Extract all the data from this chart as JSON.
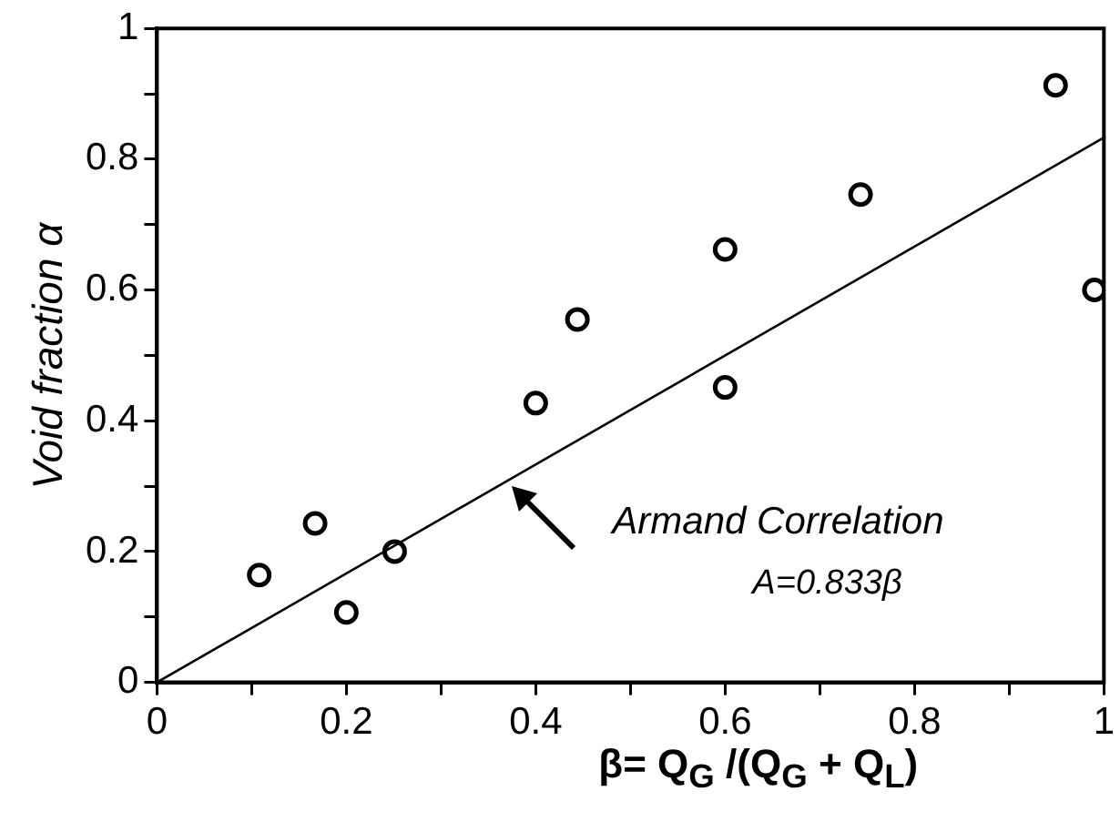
{
  "chart_data": {
    "type": "scatter",
    "xlabel": "β= Q$_{G}$ /(Q$_{G}$ + Q$_{L}$)",
    "ylabel": "Void fraction α",
    "xlim": [
      0,
      1
    ],
    "ylim": [
      0,
      1
    ],
    "xticks": [
      0,
      {
        "value": 0.1,
        "label": null
      },
      0.2,
      {
        "value": 0.3,
        "label": null
      },
      0.4,
      {
        "value": 0.5,
        "label": null
      },
      0.6,
      {
        "value": 0.7,
        "label": null
      },
      0.8,
      {
        "value": 0.9,
        "label": null
      },
      1
    ],
    "yticks": [
      0,
      {
        "value": 0.1,
        "label": null
      },
      0.2,
      {
        "value": 0.3,
        "label": null
      },
      0.4,
      {
        "value": 0.5,
        "label": null
      },
      0.6,
      {
        "value": 0.7,
        "label": null
      },
      0.8,
      {
        "value": 0.9,
        "label": null
      },
      1
    ],
    "grid": false,
    "legend": false,
    "series": [
      {
        "marker": "circle",
        "color": "#000000",
        "x": [
          0.108,
          0.167,
          0.2,
          0.251,
          0.4,
          0.444,
          0.6,
          0.6,
          0.743,
          0.949,
          0.99
        ],
        "values": [
          0.164,
          0.243,
          0.107,
          0.2,
          0.427,
          0.555,
          0.662,
          0.451,
          0.746,
          0.913,
          0.6
        ]
      },
      {
        "type": "line",
        "marker": "none",
        "color": "#000000",
        "x": [
          0,
          1
        ],
        "values": [
          0,
          0.833
        ]
      }
    ],
    "annotations": [
      {
        "text": "Armand Correlation",
        "x": 0.375,
        "y": 0.3
      },
      "A=0.833β"
    ]
  }
}
